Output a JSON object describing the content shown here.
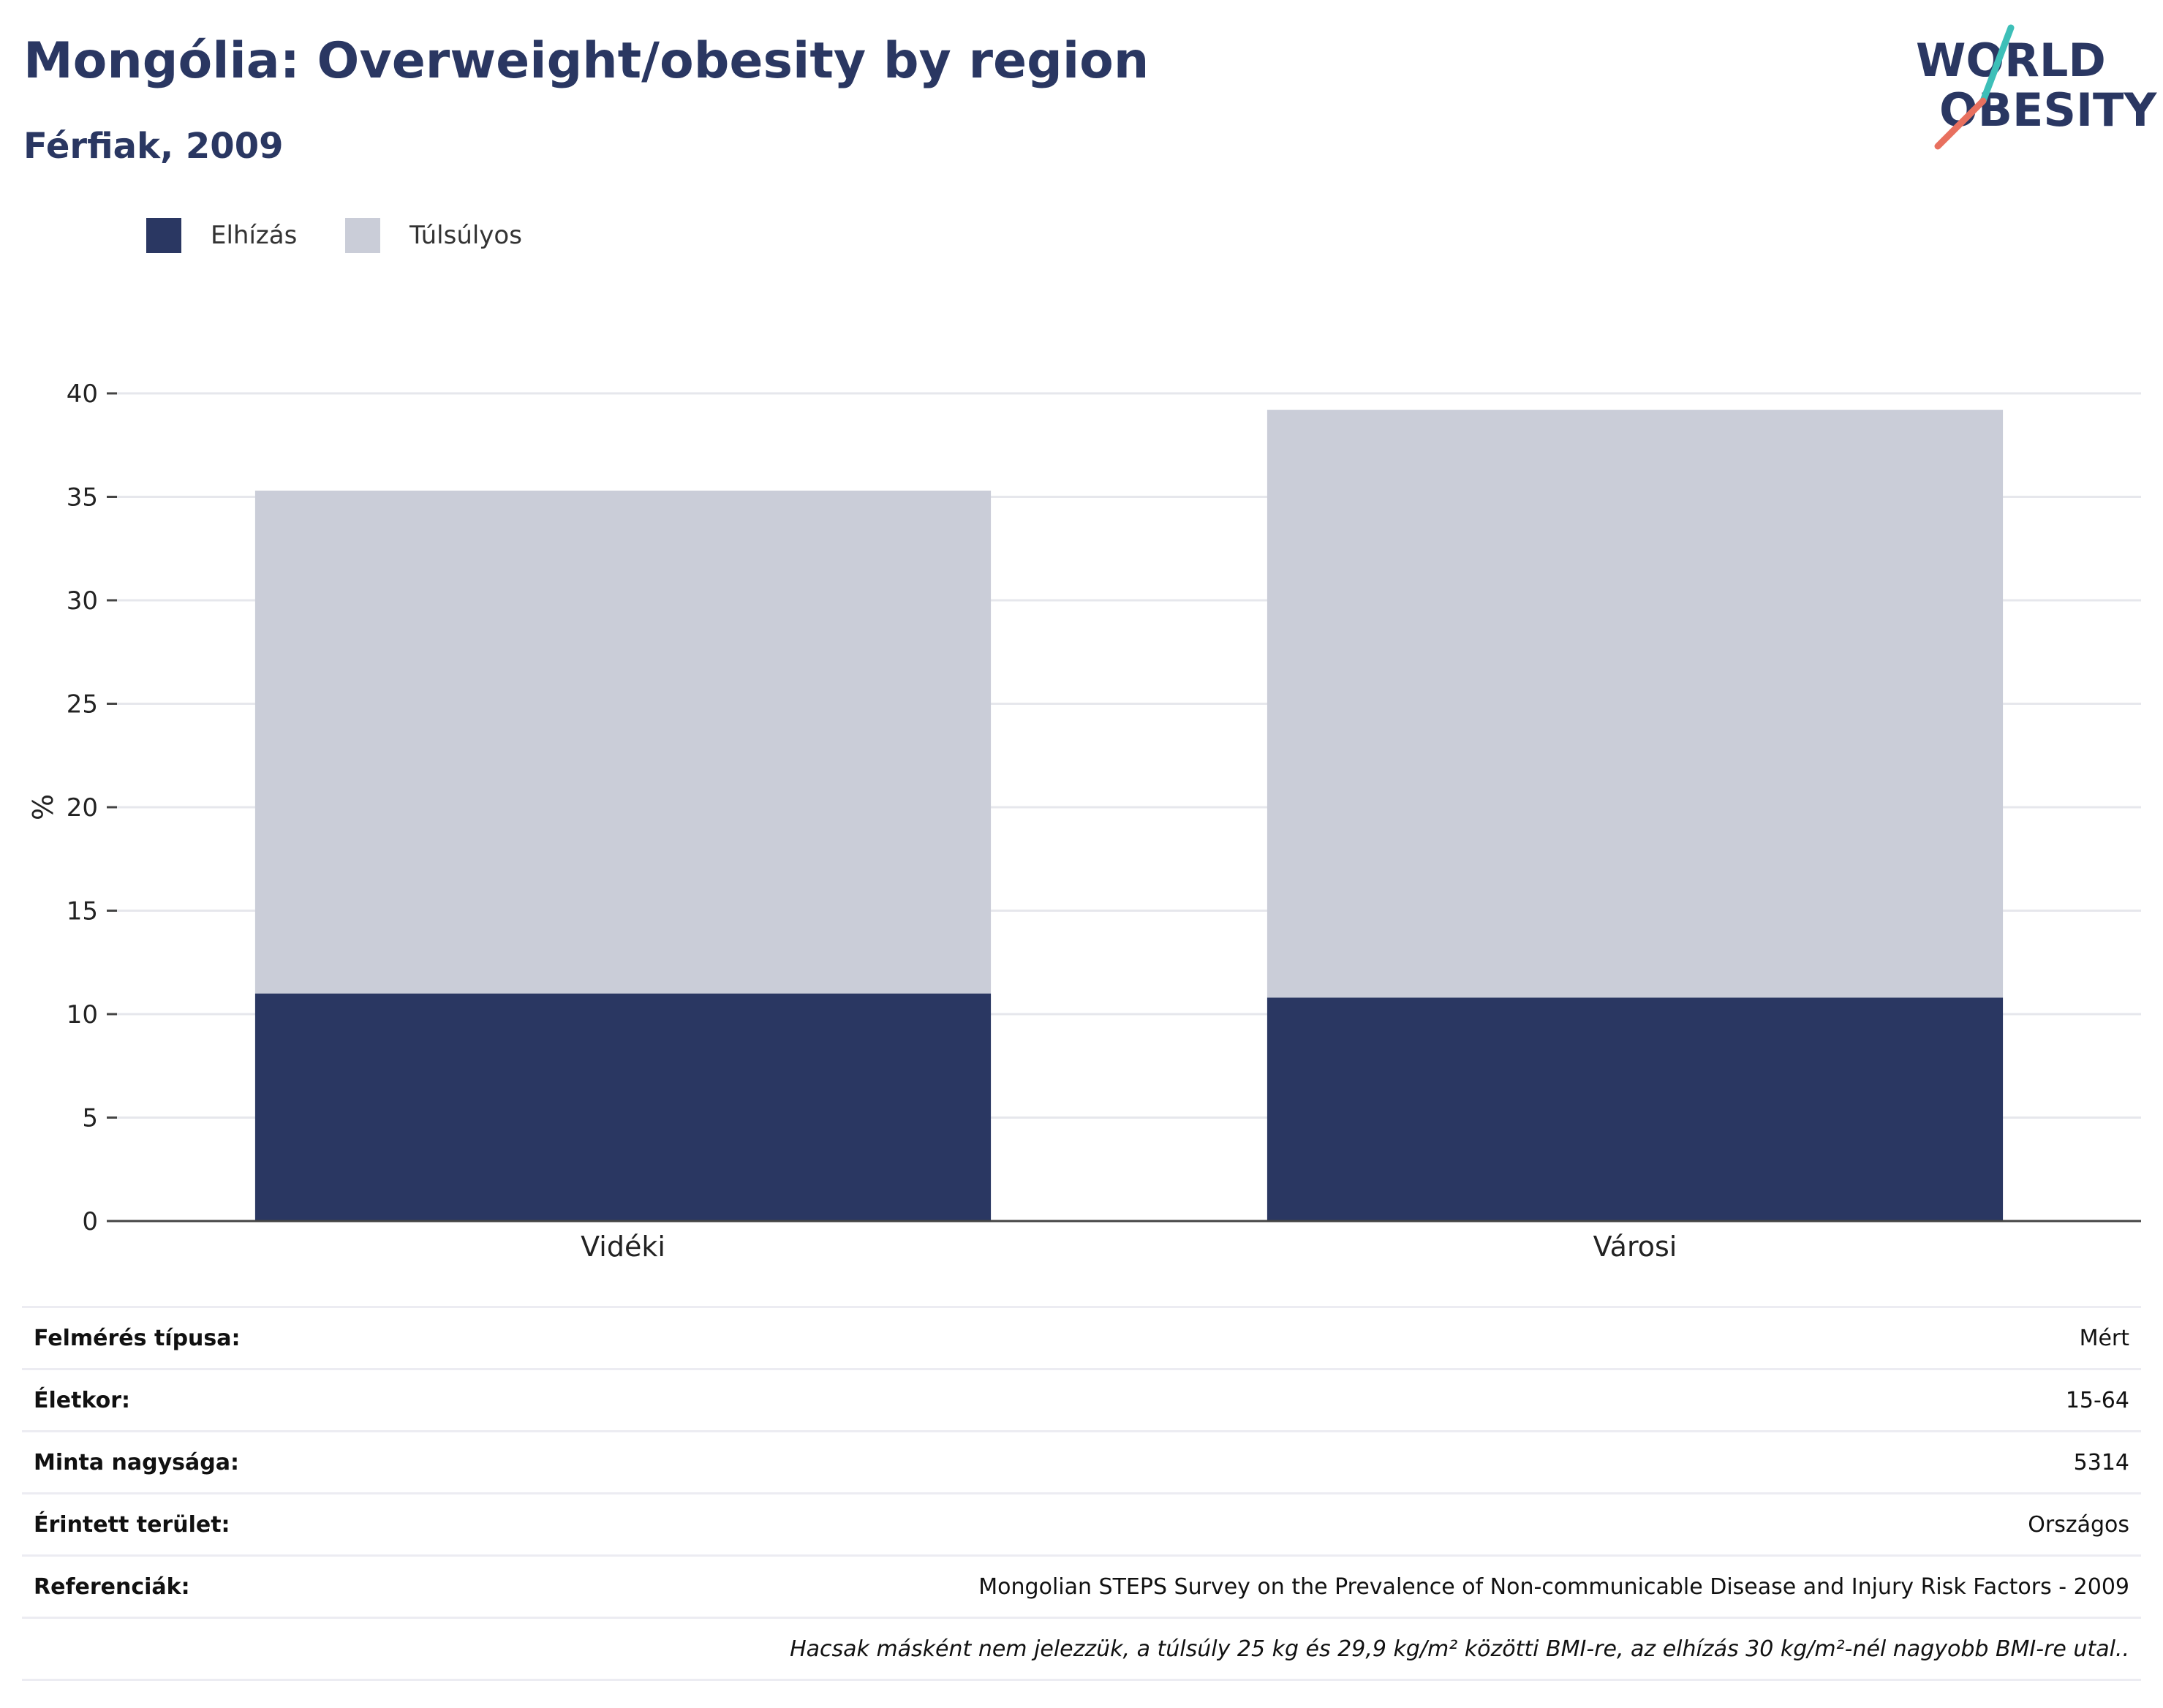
{
  "header": {
    "title": "Mongólia: Overweight/obesity by region",
    "subtitle": "Férfiak, 2009"
  },
  "logo": {
    "line1": "WORLD",
    "line2": "OBESITY",
    "colors": {
      "text": "#2a3762",
      "slash_top": "#3dbfb8",
      "slash_bottom": "#e8705f"
    }
  },
  "legend": [
    {
      "label": "Elhízás",
      "color": "#2a3762"
    },
    {
      "label": "Túlsúlyos",
      "color": "#cacdd8"
    }
  ],
  "chart_data": {
    "type": "bar",
    "stacked": true,
    "categories": [
      "Vidéki",
      "Városi"
    ],
    "series": [
      {
        "name": "Elhízás",
        "values": [
          11.0,
          10.8
        ],
        "color": "#2a3762"
      },
      {
        "name": "Túlsúlyos",
        "values": [
          24.3,
          28.4
        ],
        "color": "#cacdd8"
      }
    ],
    "ylabel": "%",
    "ylim": [
      0,
      40
    ],
    "yticks": [
      0,
      5,
      10,
      15,
      20,
      25,
      30,
      35,
      40
    ],
    "grid": true,
    "legend_position": "top-left"
  },
  "info": {
    "rows": [
      {
        "label": "Felmérés típusa:",
        "value": "Mért"
      },
      {
        "label": "Életkor:",
        "value": "15-64"
      },
      {
        "label": "Minta nagysága:",
        "value": "5314"
      },
      {
        "label": "Érintett terület:",
        "value": "Országos"
      },
      {
        "label": "Referenciák:",
        "value": "Mongolian STEPS Survey on the Prevalence of Non-communicable Disease and Injury Risk Factors - 2009"
      }
    ],
    "note": "Hacsak másként nem jelezzük, a túlsúly 25 kg és 29,9 kg/m² közötti BMI-re, az elhízás 30 kg/m²-nél nagyobb BMI-re utal.."
  }
}
